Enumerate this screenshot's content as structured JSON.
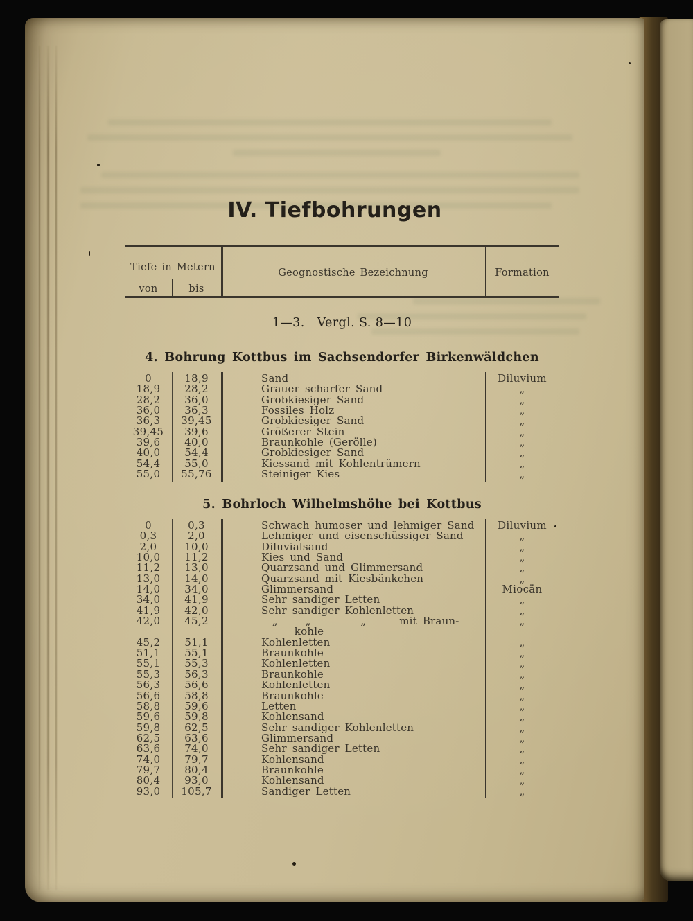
{
  "colors": {
    "background": "#070707",
    "paper": "#c8ba93",
    "paper-edge": "#af9f78",
    "next-page": "#b3a47d",
    "gap-dark": "#2a2010",
    "gap-light": "#7d6337",
    "ink": "#38332a",
    "ink-dark": "#24201a",
    "rule": "#3a352c"
  },
  "page": {
    "title": "IV. Tiefbohrungen",
    "table_header": {
      "depth_label": "Tiefe in Metern",
      "from_label": "von",
      "to_label": "bis",
      "description_label": "Geognostische Bezeichnung",
      "formation_label": "Formation"
    },
    "reference_line": "1—3.   Vergl. S. 8—10",
    "sections": [
      {
        "heading": "4. Bohrung Kottbus im Sachsendorfer Birkenwäldchen",
        "rows": [
          {
            "von": "0",
            "bis": "18,9",
            "desc": "Sand",
            "form": "Diluvium"
          },
          {
            "von": "18,9",
            "bis": "28,2",
            "desc": "Grauer scharfer Sand",
            "form": "„"
          },
          {
            "von": "28,2",
            "bis": "36,0",
            "desc": "Grobkiesiger Sand",
            "form": "„"
          },
          {
            "von": "36,0",
            "bis": "36,3",
            "desc": "Fossiles Holz",
            "form": "„"
          },
          {
            "von": "36,3",
            "bis": "39,45",
            "desc": "Grobkiesiger Sand",
            "form": "„"
          },
          {
            "von": "39,45",
            "bis": "39,6",
            "desc": "Größerer Stein",
            "form": "„"
          },
          {
            "von": "39,6",
            "bis": "40,0",
            "desc": "Braunkohle (Gerölle)",
            "form": "„"
          },
          {
            "von": "40,0",
            "bis": "54,4",
            "desc": "Grobkiesiger Sand",
            "form": "„"
          },
          {
            "von": "54,4",
            "bis": "55,0",
            "desc": "Kiessand mit Kohlentrümern",
            "form": "„"
          },
          {
            "von": "55,0",
            "bis": "55,76",
            "desc": "Steiniger Kies",
            "form": "„"
          }
        ]
      },
      {
        "heading": "5. Bohrloch Wilhelmshöhe bei Kottbus",
        "rows": [
          {
            "von": "0",
            "bis": "0,3",
            "desc": "Schwach humoser und lehmiger Sand",
            "form": "Diluvium"
          },
          {
            "von": "0,3",
            "bis": "2,0",
            "desc": "Lehmiger und eisenschüssiger Sand",
            "form": "„"
          },
          {
            "von": "2,0",
            "bis": "10,0",
            "desc": "Diluvialsand",
            "form": "„"
          },
          {
            "von": "10,0",
            "bis": "11,2",
            "desc": "Kies und Sand",
            "form": "„"
          },
          {
            "von": "11,2",
            "bis": "13,0",
            "desc": "Quarzsand und Glimmersand",
            "form": "„"
          },
          {
            "von": "13,0",
            "bis": "14,0",
            "desc": "Quarzsand mit Kiesbänkchen",
            "form": "„"
          },
          {
            "von": "14,0",
            "bis": "34,0",
            "desc": "Glimmersand",
            "form": "Miocän"
          },
          {
            "von": "34,0",
            "bis": "41,9",
            "desc": "Sehr sandiger Letten",
            "form": "„"
          },
          {
            "von": "41,9",
            "bis": "42,0",
            "desc": "Sehr sandiger Kohlenletten",
            "form": "„"
          },
          {
            "von": "42,0",
            "bis": "45,2",
            "desc": "  „     „         „      mit Braun-",
            "form": "„"
          },
          {
            "von": "",
            "bis": "",
            "desc": "      kohle",
            "form": ""
          },
          {
            "von": "45,2",
            "bis": "51,1",
            "desc": "Kohlenletten",
            "form": "„"
          },
          {
            "von": "51,1",
            "bis": "55,1",
            "desc": "Braunkohle",
            "form": "„"
          },
          {
            "von": "55,1",
            "bis": "55,3",
            "desc": "Kohlenletten",
            "form": "„"
          },
          {
            "von": "55,3",
            "bis": "56,3",
            "desc": "Braunkohle",
            "form": "„"
          },
          {
            "von": "56,3",
            "bis": "56,6",
            "desc": "Kohlenletten",
            "form": "„"
          },
          {
            "von": "56,6",
            "bis": "58,8",
            "desc": "Braunkohle",
            "form": "„"
          },
          {
            "von": "58,8",
            "bis": "59,6",
            "desc": "Letten",
            "form": "„"
          },
          {
            "von": "59,6",
            "bis": "59,8",
            "desc": "Kohlensand",
            "form": "„"
          },
          {
            "von": "59,8",
            "bis": "62,5",
            "desc": "Sehr sandiger Kohlenletten",
            "form": "„"
          },
          {
            "von": "62,5",
            "bis": "63,6",
            "desc": "Glimmersand",
            "form": "„"
          },
          {
            "von": "63,6",
            "bis": "74,0",
            "desc": "Sehr sandiger Letten",
            "form": "„"
          },
          {
            "von": "74,0",
            "bis": "79,7",
            "desc": "Kohlensand",
            "form": "„"
          },
          {
            "von": "79,7",
            "bis": "80,4",
            "desc": "Braunkohle",
            "form": "„"
          },
          {
            "von": "80,4",
            "bis": "93,0",
            "desc": "Kohlensand",
            "form": "„"
          },
          {
            "von": "93,0",
            "bis": "105,7",
            "desc": "Sandiger Letten",
            "form": "„"
          }
        ]
      }
    ]
  }
}
